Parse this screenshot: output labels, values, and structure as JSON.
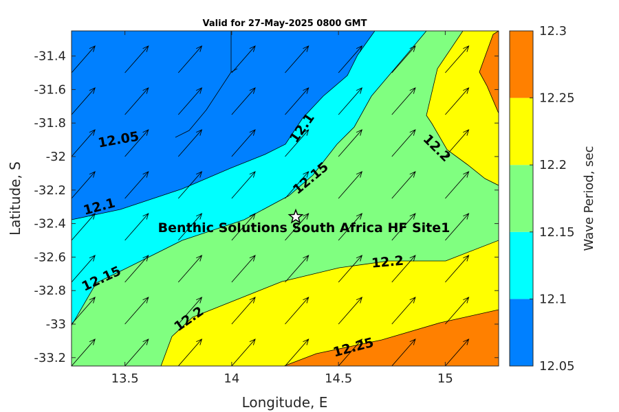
{
  "chart_data": {
    "type": "contour",
    "title": "Valid for 27-May-2025 0800 GMT",
    "xlabel": "Longitude, E",
    "ylabel": "Latitude, S",
    "xlim": [
      13.25,
      15.25
    ],
    "ylim": [
      -33.25,
      -31.25
    ],
    "xticks": [
      13.5,
      14,
      14.5,
      15
    ],
    "xtick_labels": [
      "13.5",
      "14",
      "14.5",
      "15"
    ],
    "yticks": [
      -31.4,
      -31.6,
      -31.8,
      -32,
      -32.2,
      -32.4,
      -32.6,
      -32.8,
      -33,
      -33.2
    ],
    "ytick_labels": [
      "-31.4",
      "-31.6",
      "-31.8",
      "-32",
      "-32.2",
      "-32.4",
      "-32.6",
      "-32.8",
      "-33",
      "-33.2"
    ],
    "colorbar": {
      "label": "Wave Period, sec",
      "levels": [
        12.05,
        12.1,
        12.15,
        12.2,
        12.25,
        12.3
      ],
      "tick_labels": [
        "12.05",
        "12.1",
        "12.15",
        "12.2",
        "12.25",
        "12.3"
      ],
      "colors": [
        "#0080ff",
        "#00ffff",
        "#80ff80",
        "#ffff00",
        "#ff8000"
      ]
    },
    "contour_labels": [
      {
        "text": "12.05",
        "lon": 13.47,
        "lat": -31.9
      },
      {
        "text": "12.1",
        "lon": 13.38,
        "lat": -32.3
      },
      {
        "text": "12.1",
        "lon": 14.33,
        "lat": -31.83
      },
      {
        "text": "12.15",
        "lon": 13.39,
        "lat": -32.73
      },
      {
        "text": "12.15",
        "lon": 14.37,
        "lat": -32.13
      },
      {
        "text": "12.2",
        "lon": 14.96,
        "lat": -31.95
      },
      {
        "text": "12.2",
        "lon": 14.73,
        "lat": -32.63
      },
      {
        "text": "12.2",
        "lon": 13.8,
        "lat": -32.97
      },
      {
        "text": "12.25",
        "lon": 14.57,
        "lat": -33.14
      }
    ],
    "site": {
      "name": "Benthic Solutions South Africa HF Site1",
      "lon": 14.3,
      "lat": -32.36
    },
    "vectors": {
      "lons": [
        13.25,
        13.5,
        13.75,
        14.0,
        14.25,
        14.5,
        14.75,
        15.0
      ],
      "lats": [
        -33.25,
        -33.0,
        -32.75,
        -32.5,
        -32.25,
        -32.0,
        -31.75,
        -31.5
      ],
      "u": 0.11,
      "v": 0.16
    }
  }
}
